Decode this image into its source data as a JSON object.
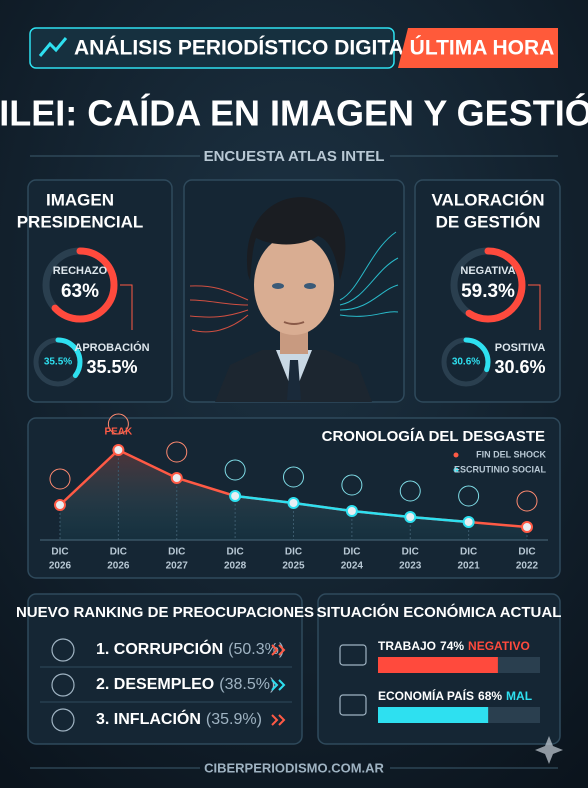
{
  "header": {
    "tag": "ANÁLISIS PERIODÍSTICO DIGITAL",
    "badge": "ÚLTIMA HORA",
    "title": "MILEI: CAÍDA EN IMAGEN Y GESTIÓN",
    "subtitle": "ENCUESTA ATLAS INTEL"
  },
  "imagen": {
    "title_lines": [
      "IMAGEN",
      "PRESIDENCIAL"
    ],
    "lim": [
      0,
      100
    ],
    "main": {
      "label": "RECHAZO",
      "value": 63,
      "value_label": "63%",
      "color": "#ff4a3d"
    },
    "second": {
      "label": "APROBACIÓN",
      "value": 35.5,
      "value_label": "35.5%",
      "color": "#2ee0f0"
    }
  },
  "valoracion": {
    "title_lines": [
      "VALORACIÓN",
      "DE GESTIÓN"
    ],
    "lim": [
      0,
      100
    ],
    "main": {
      "label": "NEGATIVA",
      "value": 59.3,
      "value_label": "59.3%",
      "color": "#ff4a3d"
    },
    "second": {
      "label": "POSITIVA",
      "value": 30.6,
      "value_label": "30.6%",
      "color": "#2ee0f0"
    }
  },
  "timeline": {
    "title": "CRONOLOGÍA DEL DESGASTE",
    "legend": [
      {
        "name": "FIN DEL SHOCK",
        "color": "#ff5a45"
      },
      {
        "name": "ESCRUTINIO SOCIAL",
        "color": "#2ee0f0"
      }
    ],
    "peak_label": "PEAK",
    "ylim": [
      0,
      100
    ],
    "categories": [
      [
        "DIC",
        "2026"
      ],
      [
        "DIC",
        "2026"
      ],
      [
        "DIC",
        "2027"
      ],
      [
        "DIC",
        "2028"
      ],
      [
        "DIC",
        "2025"
      ],
      [
        "DIC",
        "2024"
      ],
      [
        "DIC",
        "2023"
      ],
      [
        "DIC",
        "2021"
      ],
      [
        "DIC",
        "2022"
      ]
    ],
    "values": [
      35,
      90,
      62,
      44,
      37,
      29,
      23,
      18,
      13
    ]
  },
  "ranking": {
    "title": "NUEVO RANKING DE PREOCUPACIONES",
    "items": [
      {
        "label": "1. CORRUPCIÓN",
        "value": 50.3,
        "value_label": "(50.3%)",
        "color": "#ff5a45"
      },
      {
        "label": "2. DESEMPLEO",
        "value": 38.5,
        "value_label": "(38.5%)",
        "color": "#2ee0f0"
      },
      {
        "label": "3. INFLACIÓN",
        "value": 35.9,
        "value_label": "(35.9%)",
        "color": "#ff5a45"
      }
    ]
  },
  "economia": {
    "title": "SITUACIÓN ECONÓMICA ACTUAL",
    "xlim": [
      0,
      100
    ],
    "items": [
      {
        "label": "TRABAJO",
        "value": 74,
        "value_label": "74%",
        "verdict": "NEGATIVO",
        "color": "#ff4a3d"
      },
      {
        "label": "ECONOMÍA PAÍS",
        "value": 68,
        "value_label": "68%",
        "verdict": "MAL",
        "color": "#2ee0f0"
      }
    ]
  },
  "footer": "CIBERPERIODISMO.COM.AR"
}
